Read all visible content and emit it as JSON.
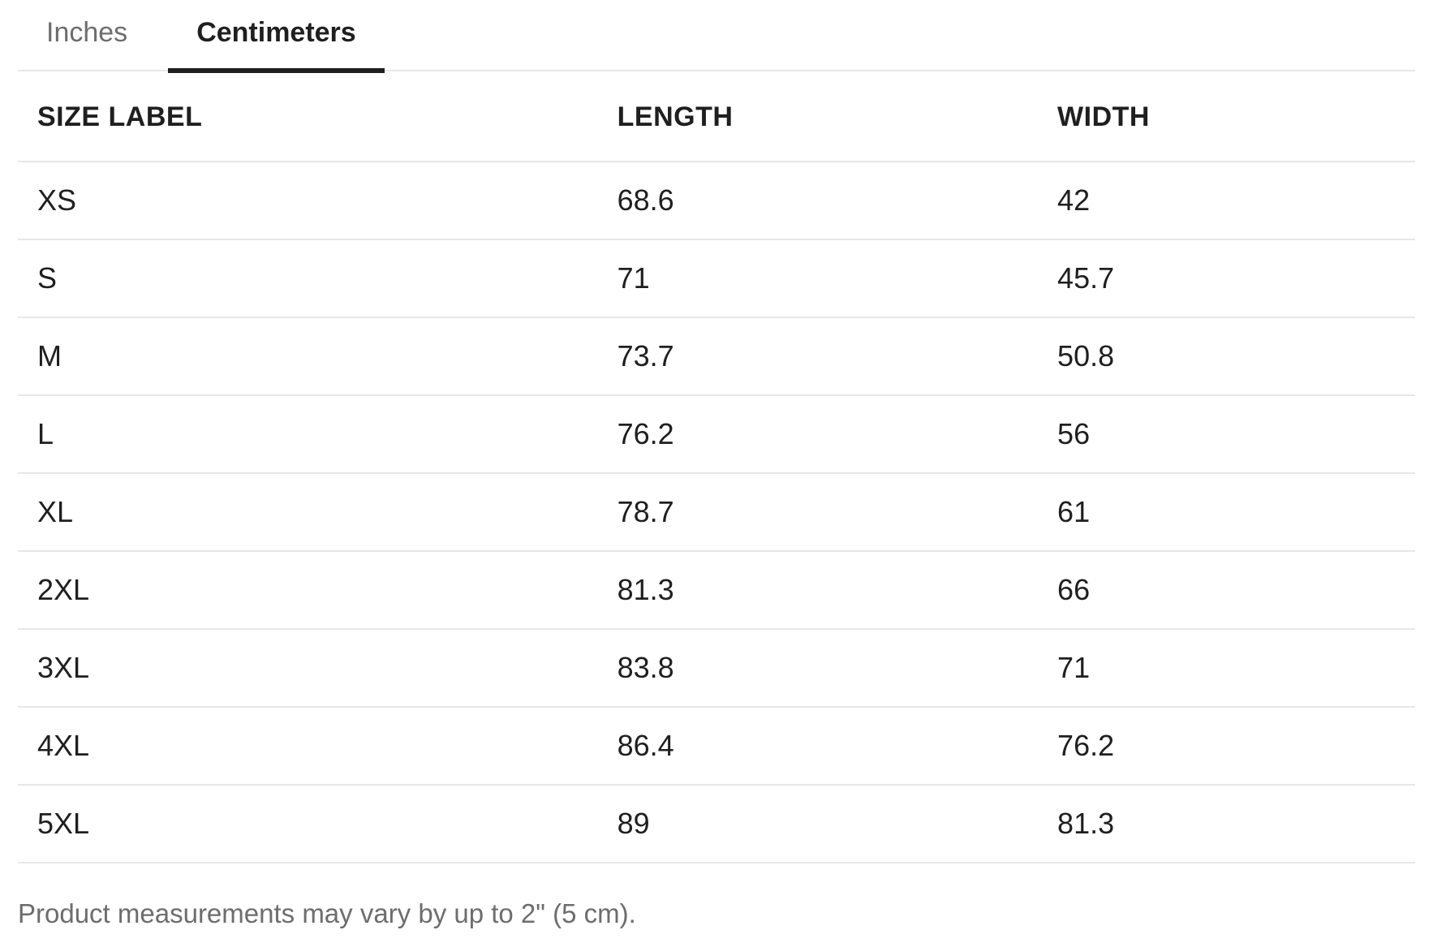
{
  "tabs": [
    {
      "label": "Inches",
      "active": false
    },
    {
      "label": "Centimeters",
      "active": true
    }
  ],
  "table": {
    "columns": [
      "SIZE LABEL",
      "LENGTH",
      "WIDTH"
    ],
    "unit": "cm",
    "rows": [
      {
        "size": "XS",
        "length": "68.6",
        "width": "42"
      },
      {
        "size": "S",
        "length": "71",
        "width": "45.7"
      },
      {
        "size": "M",
        "length": "73.7",
        "width": "50.8"
      },
      {
        "size": "L",
        "length": "76.2",
        "width": "56"
      },
      {
        "size": "XL",
        "length": "78.7",
        "width": "61"
      },
      {
        "size": "2XL",
        "length": "81.3",
        "width": "66"
      },
      {
        "size": "3XL",
        "length": "83.8",
        "width": "71"
      },
      {
        "size": "4XL",
        "length": "86.4",
        "width": "76.2"
      },
      {
        "size": "5XL",
        "length": "89",
        "width": "81.3"
      }
    ]
  },
  "footer": {
    "note": "Product measurements may vary by up to 2\" (5 cm)."
  },
  "colors": {
    "text": "#1f1f1f",
    "muted": "#6d6d6d",
    "divider": "#e7e7e7",
    "active_tab_underline": "#1f1f1f"
  }
}
